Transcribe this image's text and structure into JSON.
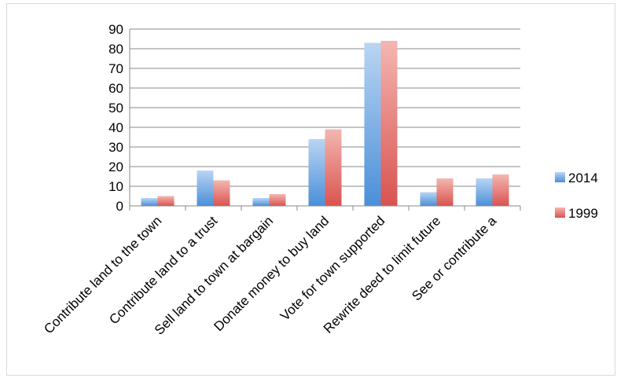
{
  "chart_data": {
    "type": "bar",
    "title": "",
    "xlabel": "",
    "ylabel": "",
    "ylim": [
      0,
      90
    ],
    "yticks": [
      0,
      10,
      20,
      30,
      40,
      50,
      60,
      70,
      80,
      90
    ],
    "grid": true,
    "legend_position": "right",
    "categories": [
      "Contribute land to the town",
      "Contribute land to a trust",
      "Sell land to town at bargain",
      "Donate money to buy land",
      "Vote for town supported",
      "Rewrite deed to limit future",
      "See or contribute a"
    ],
    "series": [
      {
        "name": "2014",
        "values": [
          4,
          18,
          4,
          34,
          83,
          7,
          14
        ],
        "color": "#5b9bd5"
      },
      {
        "name": "1999",
        "values": [
          5,
          13,
          6,
          39,
          84,
          14,
          16
        ],
        "color": "#e0605a"
      }
    ]
  }
}
